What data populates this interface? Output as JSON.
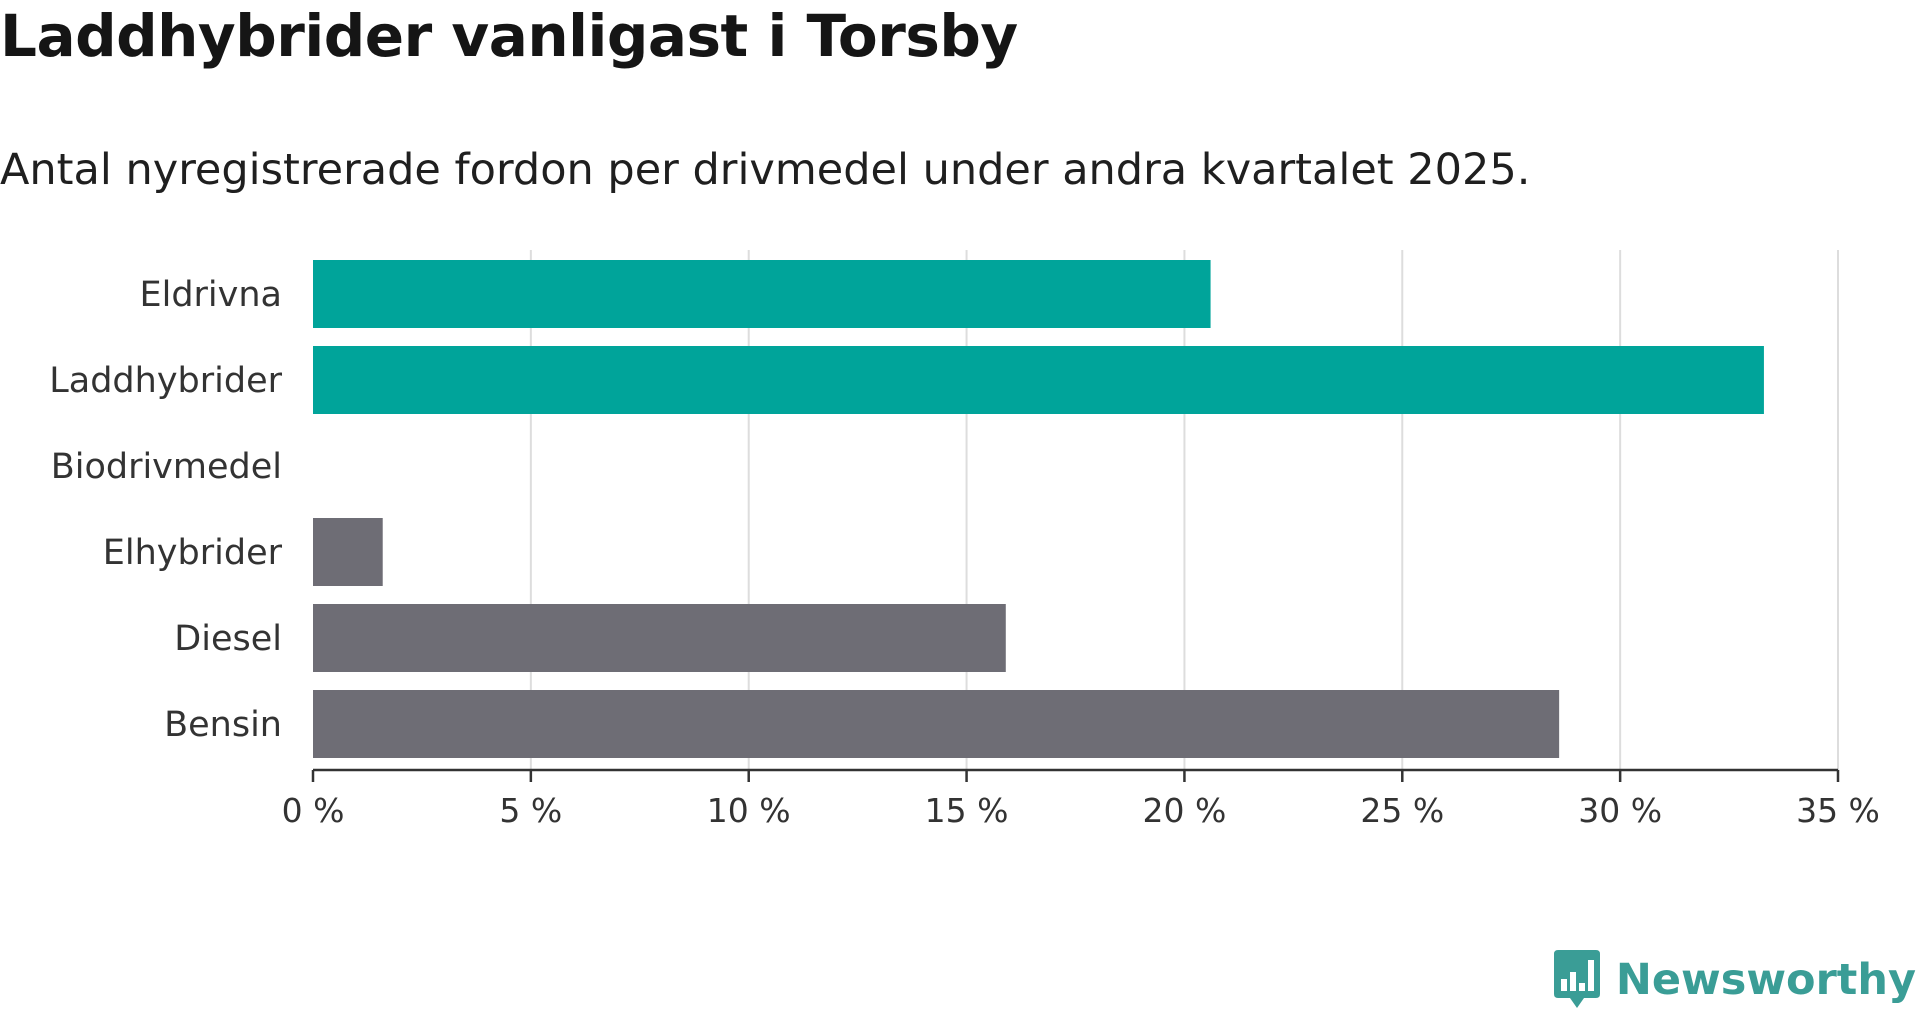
{
  "title": "Laddhybrider vanligast i Torsby",
  "subtitle": "Antal nyregistrerade fordon per drivmedel under andra kvartalet 2025.",
  "brand": {
    "name": "Newsworthy",
    "color": "#3a9d96",
    "icon": "newsworthy-logo-icon"
  },
  "colors": {
    "highlight": "#00a49a",
    "default": "#6e6d75",
    "grid": "#dddddd",
    "axis": "#333333"
  },
  "chart_data": {
    "type": "bar",
    "orientation": "horizontal",
    "categories": [
      "Eldrivna",
      "Laddhybrider",
      "Biodrivmedel",
      "Elhybrider",
      "Diesel",
      "Bensin"
    ],
    "values": [
      20.6,
      33.3,
      0,
      1.6,
      15.9,
      28.6
    ],
    "highlighted": [
      true,
      true,
      false,
      false,
      false,
      false
    ],
    "unit": "%",
    "xlim": [
      0,
      35
    ],
    "xticks": [
      0,
      5,
      10,
      15,
      20,
      25,
      30,
      35
    ],
    "xtick_labels": [
      "0 %",
      "5 %",
      "10 %",
      "15 %",
      "20 %",
      "25 %",
      "30 %",
      "35 %"
    ],
    "xlabel": "",
    "ylabel": "",
    "grid": "vertical"
  }
}
